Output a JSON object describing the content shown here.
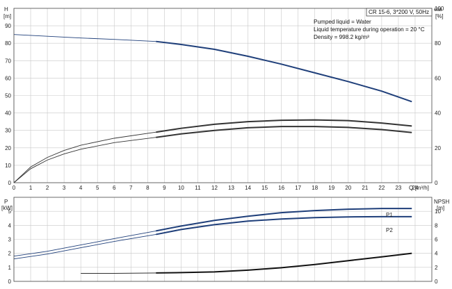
{
  "chart_data": [
    {
      "type": "line",
      "title": "CR 15-6, 3*200 V, 50Hz",
      "info": [
        "Pumped liquid = Water",
        "Liquid temperature during operation = 20 °C",
        "Density = 998.2 kg/m³"
      ],
      "xlabel": "Q [m³/h]",
      "xlim": [
        0,
        25
      ],
      "xticks": [
        0,
        1,
        2,
        3,
        4,
        5,
        6,
        7,
        8,
        9,
        10,
        11,
        12,
        13,
        14,
        15,
        16,
        17,
        18,
        19,
        20,
        21,
        22,
        23,
        24
      ],
      "y_left": {
        "label_top": "H",
        "label_unit": "[m]",
        "lim": [
          0,
          100
        ],
        "ticks": [
          0,
          10,
          20,
          30,
          40,
          50,
          60,
          70,
          80,
          90
        ]
      },
      "y_right": {
        "label_top": "eta",
        "label_unit": "[%]",
        "lim": [
          0,
          100
        ],
        "ticks": [
          0,
          20,
          40,
          60,
          80,
          100
        ]
      },
      "grid": true,
      "series": [
        {
          "color": "#1f3f7a",
          "axis": "left",
          "operating_from": 8.5,
          "x": [
            0,
            2,
            4,
            6,
            8.5,
            10,
            12,
            14,
            16,
            18,
            20,
            22,
            23.8
          ],
          "y": [
            85,
            84,
            83,
            82.2,
            81,
            79.3,
            76.5,
            72.5,
            68,
            63,
            58,
            52.5,
            46.5
          ]
        },
        {
          "color": "#333333",
          "axis": "left",
          "operating_from": 8.5,
          "x": [
            0,
            1,
            2,
            3,
            4,
            6,
            8.5,
            10,
            12,
            14,
            16,
            18,
            20,
            22,
            23.8
          ],
          "y": [
            0,
            8,
            13,
            16.5,
            19.2,
            23,
            26,
            28,
            30,
            31.5,
            32.2,
            32.2,
            31.7,
            30.5,
            28.8
          ]
        },
        {
          "color": "#333333",
          "axis": "left",
          "operating_from": 8.5,
          "x": [
            0,
            1,
            2,
            3,
            4,
            6,
            8.5,
            10,
            12,
            14,
            16,
            18,
            20,
            22,
            23.8
          ],
          "y": [
            0,
            9,
            14.5,
            18.5,
            21.5,
            25.5,
            29,
            31.2,
            33.5,
            35,
            35.8,
            36,
            35.6,
            34.2,
            32.5
          ]
        }
      ]
    },
    {
      "type": "line",
      "xlim": [
        0,
        25
      ],
      "xticks": [
        0,
        1,
        2,
        3,
        4,
        5,
        6,
        7,
        8,
        9,
        10,
        11,
        12,
        13,
        14,
        15,
        16,
        17,
        18,
        19,
        20,
        21,
        22,
        23,
        24
      ],
      "y_left": {
        "label_top": "P",
        "label_unit": "[kW]",
        "lim": [
          0,
          6
        ],
        "ticks": [
          0,
          1,
          2,
          3,
          4,
          5
        ]
      },
      "y_right": {
        "label_top": "NPSH",
        "label_unit": "[m]",
        "lim": [
          0,
          12
        ],
        "ticks": [
          0,
          2,
          4,
          6,
          8,
          10
        ]
      },
      "grid": true,
      "series": [
        {
          "name": "P1",
          "color": "#1f3f7a",
          "axis": "left",
          "operating_from": 8.5,
          "x": [
            0,
            2,
            4,
            6,
            8.5,
            10,
            12,
            14,
            16,
            18,
            20,
            22,
            23.8
          ],
          "y": [
            1.8,
            2.15,
            2.6,
            3.05,
            3.6,
            3.95,
            4.35,
            4.65,
            4.9,
            5.05,
            5.15,
            5.2,
            5.2
          ]
        },
        {
          "name": "P2",
          "color": "#1f3f7a",
          "axis": "left",
          "operating_from": 8.5,
          "x": [
            0,
            2,
            4,
            6,
            8.5,
            10,
            12,
            14,
            16,
            18,
            20,
            22,
            23.8
          ],
          "y": [
            1.6,
            1.95,
            2.4,
            2.85,
            3.35,
            3.7,
            4.05,
            4.3,
            4.45,
            4.55,
            4.6,
            4.62,
            4.62
          ]
        },
        {
          "color": "#111111",
          "axis": "right",
          "operating_from": 8.5,
          "x": [
            4,
            6,
            8.5,
            10,
            12,
            14,
            16,
            18,
            20,
            22,
            23.8
          ],
          "y": [
            1.15,
            1.15,
            1.2,
            1.25,
            1.35,
            1.6,
            1.95,
            2.4,
            2.95,
            3.5,
            4.0
          ]
        }
      ]
    }
  ]
}
